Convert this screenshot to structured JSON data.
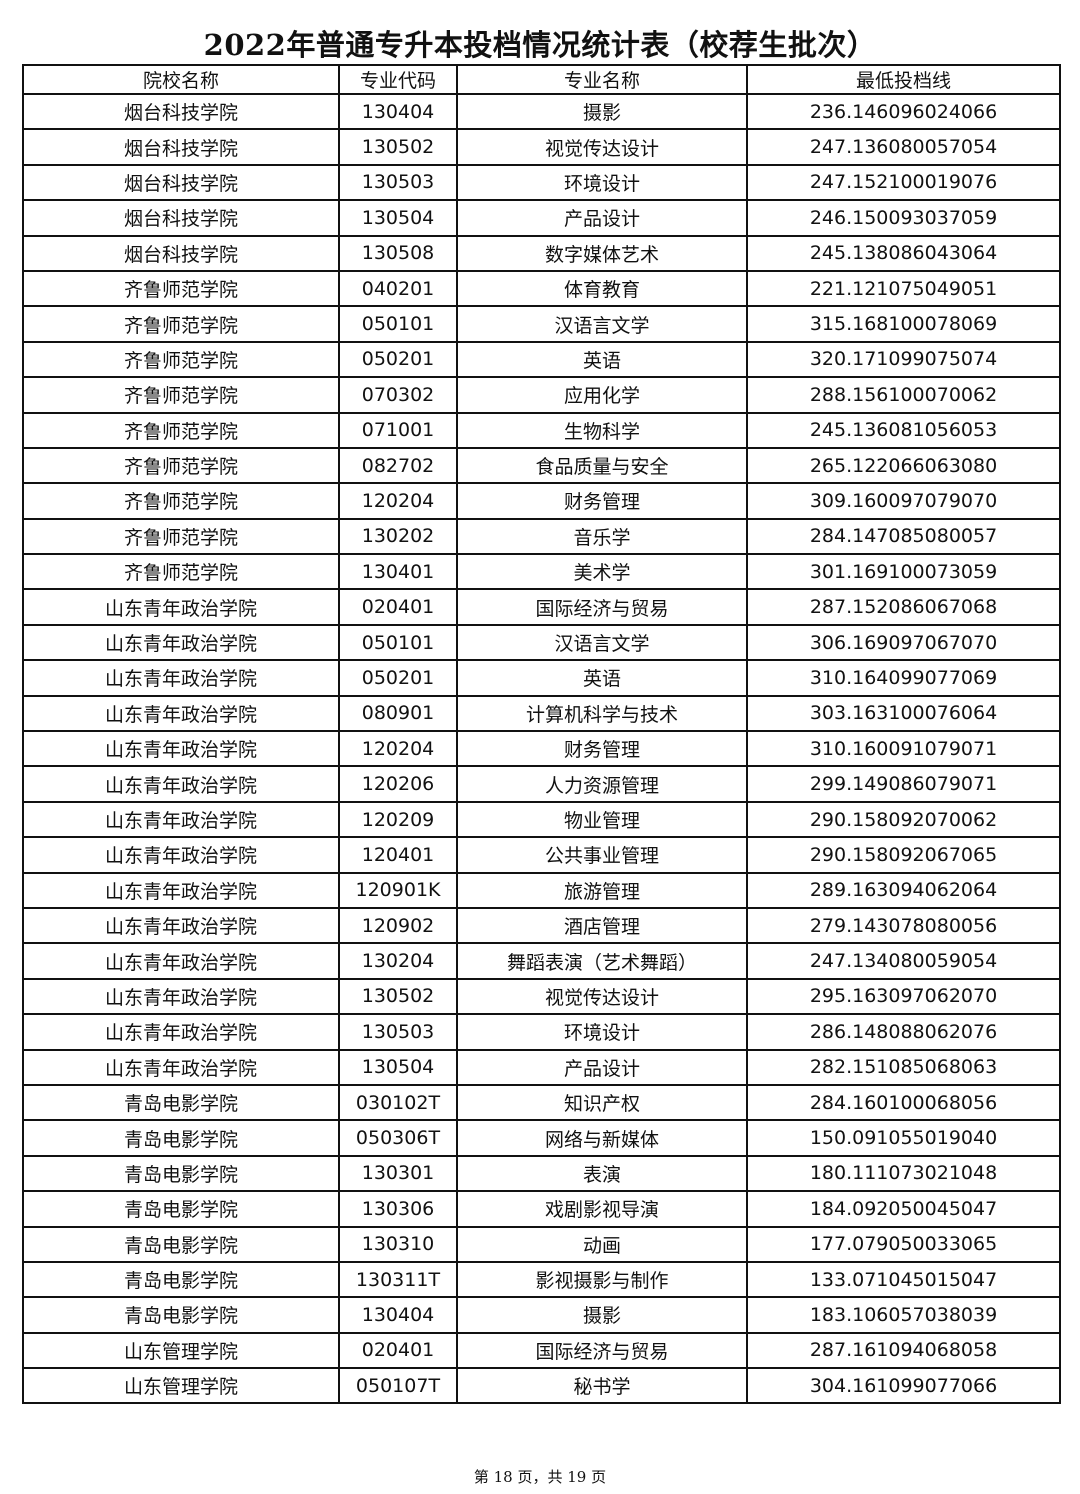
{
  "title": "2022年普通专升本投档情况统计表（校荐生批次）",
  "table": {
    "headers": [
      "院校名称",
      "专业代码",
      "专业名称",
      "最低投档线"
    ],
    "rows": [
      [
        "烟台科技学院",
        "130404",
        "摄影",
        "236.146096024066"
      ],
      [
        "烟台科技学院",
        "130502",
        "视觉传达设计",
        "247.136080057054"
      ],
      [
        "烟台科技学院",
        "130503",
        "环境设计",
        "247.152100019076"
      ],
      [
        "烟台科技学院",
        "130504",
        "产品设计",
        "246.150093037059"
      ],
      [
        "烟台科技学院",
        "130508",
        "数字媒体艺术",
        "245.138086043064"
      ],
      [
        "齐鲁师范学院",
        "040201",
        "体育教育",
        "221.121075049051"
      ],
      [
        "齐鲁师范学院",
        "050101",
        "汉语言文学",
        "315.168100078069"
      ],
      [
        "齐鲁师范学院",
        "050201",
        "英语",
        "320.171099075074"
      ],
      [
        "齐鲁师范学院",
        "070302",
        "应用化学",
        "288.156100070062"
      ],
      [
        "齐鲁师范学院",
        "071001",
        "生物科学",
        "245.136081056053"
      ],
      [
        "齐鲁师范学院",
        "082702",
        "食品质量与安全",
        "265.122066063080"
      ],
      [
        "齐鲁师范学院",
        "120204",
        "财务管理",
        "309.160097079070"
      ],
      [
        "齐鲁师范学院",
        "130202",
        "音乐学",
        "284.147085080057"
      ],
      [
        "齐鲁师范学院",
        "130401",
        "美术学",
        "301.169100073059"
      ],
      [
        "山东青年政治学院",
        "020401",
        "国际经济与贸易",
        "287.152086067068"
      ],
      [
        "山东青年政治学院",
        "050101",
        "汉语言文学",
        "306.169097067070"
      ],
      [
        "山东青年政治学院",
        "050201",
        "英语",
        "310.164099077069"
      ],
      [
        "山东青年政治学院",
        "080901",
        "计算机科学与技术",
        "303.163100076064"
      ],
      [
        "山东青年政治学院",
        "120204",
        "财务管理",
        "310.160091079071"
      ],
      [
        "山东青年政治学院",
        "120206",
        "人力资源管理",
        "299.149086079071"
      ],
      [
        "山东青年政治学院",
        "120209",
        "物业管理",
        "290.158092070062"
      ],
      [
        "山东青年政治学院",
        "120401",
        "公共事业管理",
        "290.158092067065"
      ],
      [
        "山东青年政治学院",
        "120901K",
        "旅游管理",
        "289.163094062064"
      ],
      [
        "山东青年政治学院",
        "120902",
        "酒店管理",
        "279.143078080056"
      ],
      [
        "山东青年政治学院",
        "130204",
        "舞蹈表演（艺术舞蹈）",
        "247.134080059054"
      ],
      [
        "山东青年政治学院",
        "130502",
        "视觉传达设计",
        "295.163097062070"
      ],
      [
        "山东青年政治学院",
        "130503",
        "环境设计",
        "286.148088062076"
      ],
      [
        "山东青年政治学院",
        "130504",
        "产品设计",
        "282.151085068063"
      ],
      [
        "青岛电影学院",
        "030102T",
        "知识产权",
        "284.160100068056"
      ],
      [
        "青岛电影学院",
        "050306T",
        "网络与新媒体",
        "150.091055019040"
      ],
      [
        "青岛电影学院",
        "130301",
        "表演",
        "180.111073021048"
      ],
      [
        "青岛电影学院",
        "130306",
        "戏剧影视导演",
        "184.092050045047"
      ],
      [
        "青岛电影学院",
        "130310",
        "动画",
        "177.079050033065"
      ],
      [
        "青岛电影学院",
        "130311T",
        "影视摄影与制作",
        "133.071045015047"
      ],
      [
        "青岛电影学院",
        "130404",
        "摄影",
        "183.106057038039"
      ],
      [
        "山东管理学院",
        "020401",
        "国际经济与贸易",
        "287.161094068058"
      ],
      [
        "山东管理学院",
        "050107T",
        "秘书学",
        "304.161099077066"
      ]
    ]
  },
  "footer": "第 18 页，共 19 页"
}
